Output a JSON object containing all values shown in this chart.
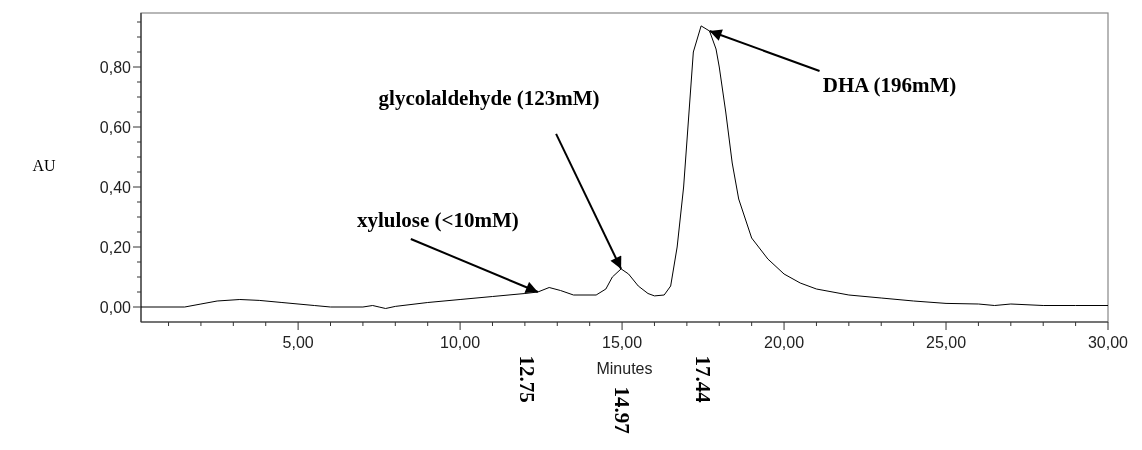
{
  "chart_data": {
    "type": "line",
    "ylabel": "AU",
    "xlabel": "Minutes",
    "xlim": [
      0.15,
      30
    ],
    "ylim": [
      -0.05,
      0.98
    ],
    "xticks": [
      {
        "value": 1,
        "label": null
      },
      {
        "value": 2,
        "label": null
      },
      {
        "value": 3,
        "label": null
      },
      {
        "value": 4,
        "label": null
      },
      {
        "value": 5,
        "label": "5,00"
      },
      {
        "value": 6,
        "label": null
      },
      {
        "value": 7,
        "label": null
      },
      {
        "value": 8,
        "label": null
      },
      {
        "value": 9,
        "label": null
      },
      {
        "value": 10,
        "label": "10,00"
      },
      {
        "value": 11,
        "label": null
      },
      {
        "value": 12,
        "label": null
      },
      {
        "value": 13,
        "label": null
      },
      {
        "value": 14,
        "label": null
      },
      {
        "value": 15,
        "label": "15,00"
      },
      {
        "value": 16,
        "label": null
      },
      {
        "value": 17,
        "label": null
      },
      {
        "value": 18,
        "label": null
      },
      {
        "value": 19,
        "label": null
      },
      {
        "value": 20,
        "label": "20,00"
      },
      {
        "value": 21,
        "label": null
      },
      {
        "value": 22,
        "label": null
      },
      {
        "value": 23,
        "label": null
      },
      {
        "value": 24,
        "label": null
      },
      {
        "value": 25,
        "label": "25,00"
      },
      {
        "value": 26,
        "label": null
      },
      {
        "value": 27,
        "label": null
      },
      {
        "value": 28,
        "label": null
      },
      {
        "value": 29,
        "label": null
      },
      {
        "value": 30,
        "label": "30,00"
      }
    ],
    "yticks": [
      {
        "value": 0,
        "label": "0,00"
      },
      {
        "value": 0.05,
        "label": null
      },
      {
        "value": 0.1,
        "label": null
      },
      {
        "value": 0.15,
        "label": null
      },
      {
        "value": 0.2,
        "label": "0,20"
      },
      {
        "value": 0.25,
        "label": null
      },
      {
        "value": 0.3,
        "label": null
      },
      {
        "value": 0.35,
        "label": null
      },
      {
        "value": 0.4,
        "label": "0,40"
      },
      {
        "value": 0.45,
        "label": null
      },
      {
        "value": 0.5,
        "label": null
      },
      {
        "value": 0.55,
        "label": null
      },
      {
        "value": 0.6,
        "label": "0,60"
      },
      {
        "value": 0.65,
        "label": null
      },
      {
        "value": 0.7,
        "label": null
      },
      {
        "value": 0.75,
        "label": null
      },
      {
        "value": 0.8,
        "label": "0,80"
      },
      {
        "value": 0.85,
        "label": null
      },
      {
        "value": 0.9,
        "label": null
      },
      {
        "value": 0.95,
        "label": null
      }
    ],
    "series": [
      {
        "color": "#000000",
        "x": [
          0.15,
          1.5,
          2.0,
          2.5,
          3.2,
          3.8,
          4.5,
          5.5,
          6.0,
          7.0,
          7.3,
          7.5,
          7.7,
          8.0,
          9.0,
          10.0,
          11.0,
          12.0,
          12.4,
          12.75,
          13.1,
          13.5,
          14.2,
          14.5,
          14.7,
          14.97,
          15.2,
          15.5,
          15.8,
          16.0,
          16.3,
          16.5,
          16.7,
          16.9,
          17.0,
          17.2,
          17.44,
          17.7,
          17.9,
          18.0,
          18.2,
          18.4,
          18.6,
          19.0,
          19.5,
          20.0,
          20.5,
          21.0,
          22.0,
          23.0,
          24.0,
          25.0,
          26.0,
          26.5,
          27.0,
          28.0,
          29.0,
          30.0
        ],
        "values": [
          0,
          0,
          0.01,
          0.02,
          0.025,
          0.022,
          0.015,
          0.005,
          0,
          0,
          0.005,
          0,
          -0.005,
          0.002,
          0.015,
          0.025,
          0.035,
          0.045,
          0.05,
          0.065,
          0.055,
          0.04,
          0.04,
          0.06,
          0.1,
          0.127,
          0.11,
          0.07,
          0.045,
          0.037,
          0.04,
          0.07,
          0.2,
          0.4,
          0.55,
          0.85,
          0.937,
          0.92,
          0.86,
          0.8,
          0.65,
          0.48,
          0.36,
          0.23,
          0.16,
          0.11,
          0.08,
          0.06,
          0.04,
          0.03,
          0.02,
          0.012,
          0.01,
          0.005,
          0.01,
          0.005,
          0.005,
          0.005
        ]
      }
    ],
    "annotations": [
      {
        "text": "xylulose (<10mM)",
        "x": 12.4,
        "y": 0.05
      },
      {
        "text": "glycolaldehyde (123mM)",
        "x": 14.97,
        "y": 0.127
      },
      {
        "text": "DHA (196mM)",
        "x": 17.7,
        "y": 0.92
      },
      "12.75",
      "14.97",
      "17.44"
    ]
  }
}
